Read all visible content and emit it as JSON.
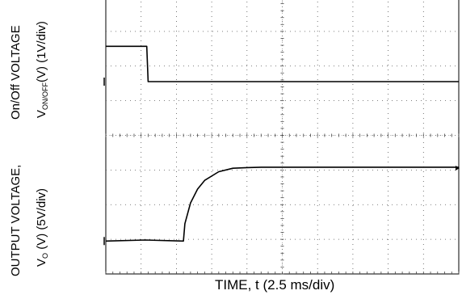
{
  "chart_data": {
    "type": "line",
    "title": "",
    "xlabel": "TIME, t (2.5 ms/div)",
    "x_units": "ms",
    "xlim": [
      0,
      25
    ],
    "x_divisions": 10,
    "y_divisions": 8,
    "grid": true,
    "left_labels": {
      "top_outer": "On/Off VOLTAGE",
      "top_inner_prefix": "V",
      "top_inner_sub": "ON/OFF",
      "top_inner_suffix": "(V) (1V/div)",
      "bottom_outer": "OUTPUT VOLTAGE,",
      "bottom_inner_prefix": "V",
      "bottom_inner_sub": "O",
      "bottom_inner_suffix": " (V) (5V/div)"
    },
    "series": [
      {
        "name": "",
        "color": "#000000",
        "units_per_div": 1,
        "zero_division": 7.05,
        "points": [
          [
            0,
            0
          ],
          [
            2.8,
            0.03
          ],
          [
            5.5,
            0
          ],
          [
            5.6,
            0.5
          ],
          [
            6,
            1.1
          ],
          [
            6.5,
            1.5
          ],
          [
            7,
            1.75
          ],
          [
            8,
            2.0
          ],
          [
            9,
            2.1
          ],
          [
            10,
            2.12
          ],
          [
            11,
            2.13
          ],
          [
            25,
            2.13
          ]
        ]
      },
      {
        "name": "",
        "color": "#000000",
        "units_per_div": 5,
        "zero_division": 2.45,
        "points": [
          [
            0,
            5.1
          ],
          [
            2.9,
            5.1
          ],
          [
            3.0,
            0
          ],
          [
            25,
            0
          ]
        ]
      }
    ]
  }
}
